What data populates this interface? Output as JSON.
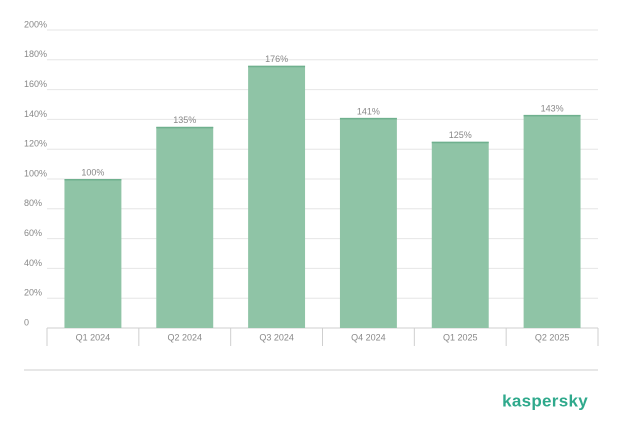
{
  "chart_data": {
    "type": "bar",
    "categories": [
      "Q1 2024",
      "Q2 2024",
      "Q3 2024",
      "Q4 2024",
      "Q1 2025",
      "Q2 2025"
    ],
    "values": [
      100,
      135,
      176,
      141,
      125,
      143
    ],
    "value_labels": [
      "100%",
      "135%",
      "176%",
      "141%",
      "125%",
      "143%"
    ],
    "color": "#8fc4a6",
    "ylim": [
      0,
      200
    ],
    "yticks": [
      0,
      {
        "value": 20,
        "label": "20%"
      },
      {
        "value": 40,
        "label": "40%"
      },
      {
        "value": 60,
        "label": "60%"
      },
      {
        "value": 80,
        "label": "80%"
      },
      {
        "value": 100,
        "label": "100%"
      },
      {
        "value": 120,
        "label": "120%"
      },
      {
        "value": 140,
        "label": "140%"
      },
      {
        "value": 160,
        "label": "160%"
      },
      {
        "value": 180,
        "label": "180%"
      },
      {
        "value": 200,
        "label": "200%"
      }
    ],
    "grid": true
  },
  "logo": "kaspersky"
}
